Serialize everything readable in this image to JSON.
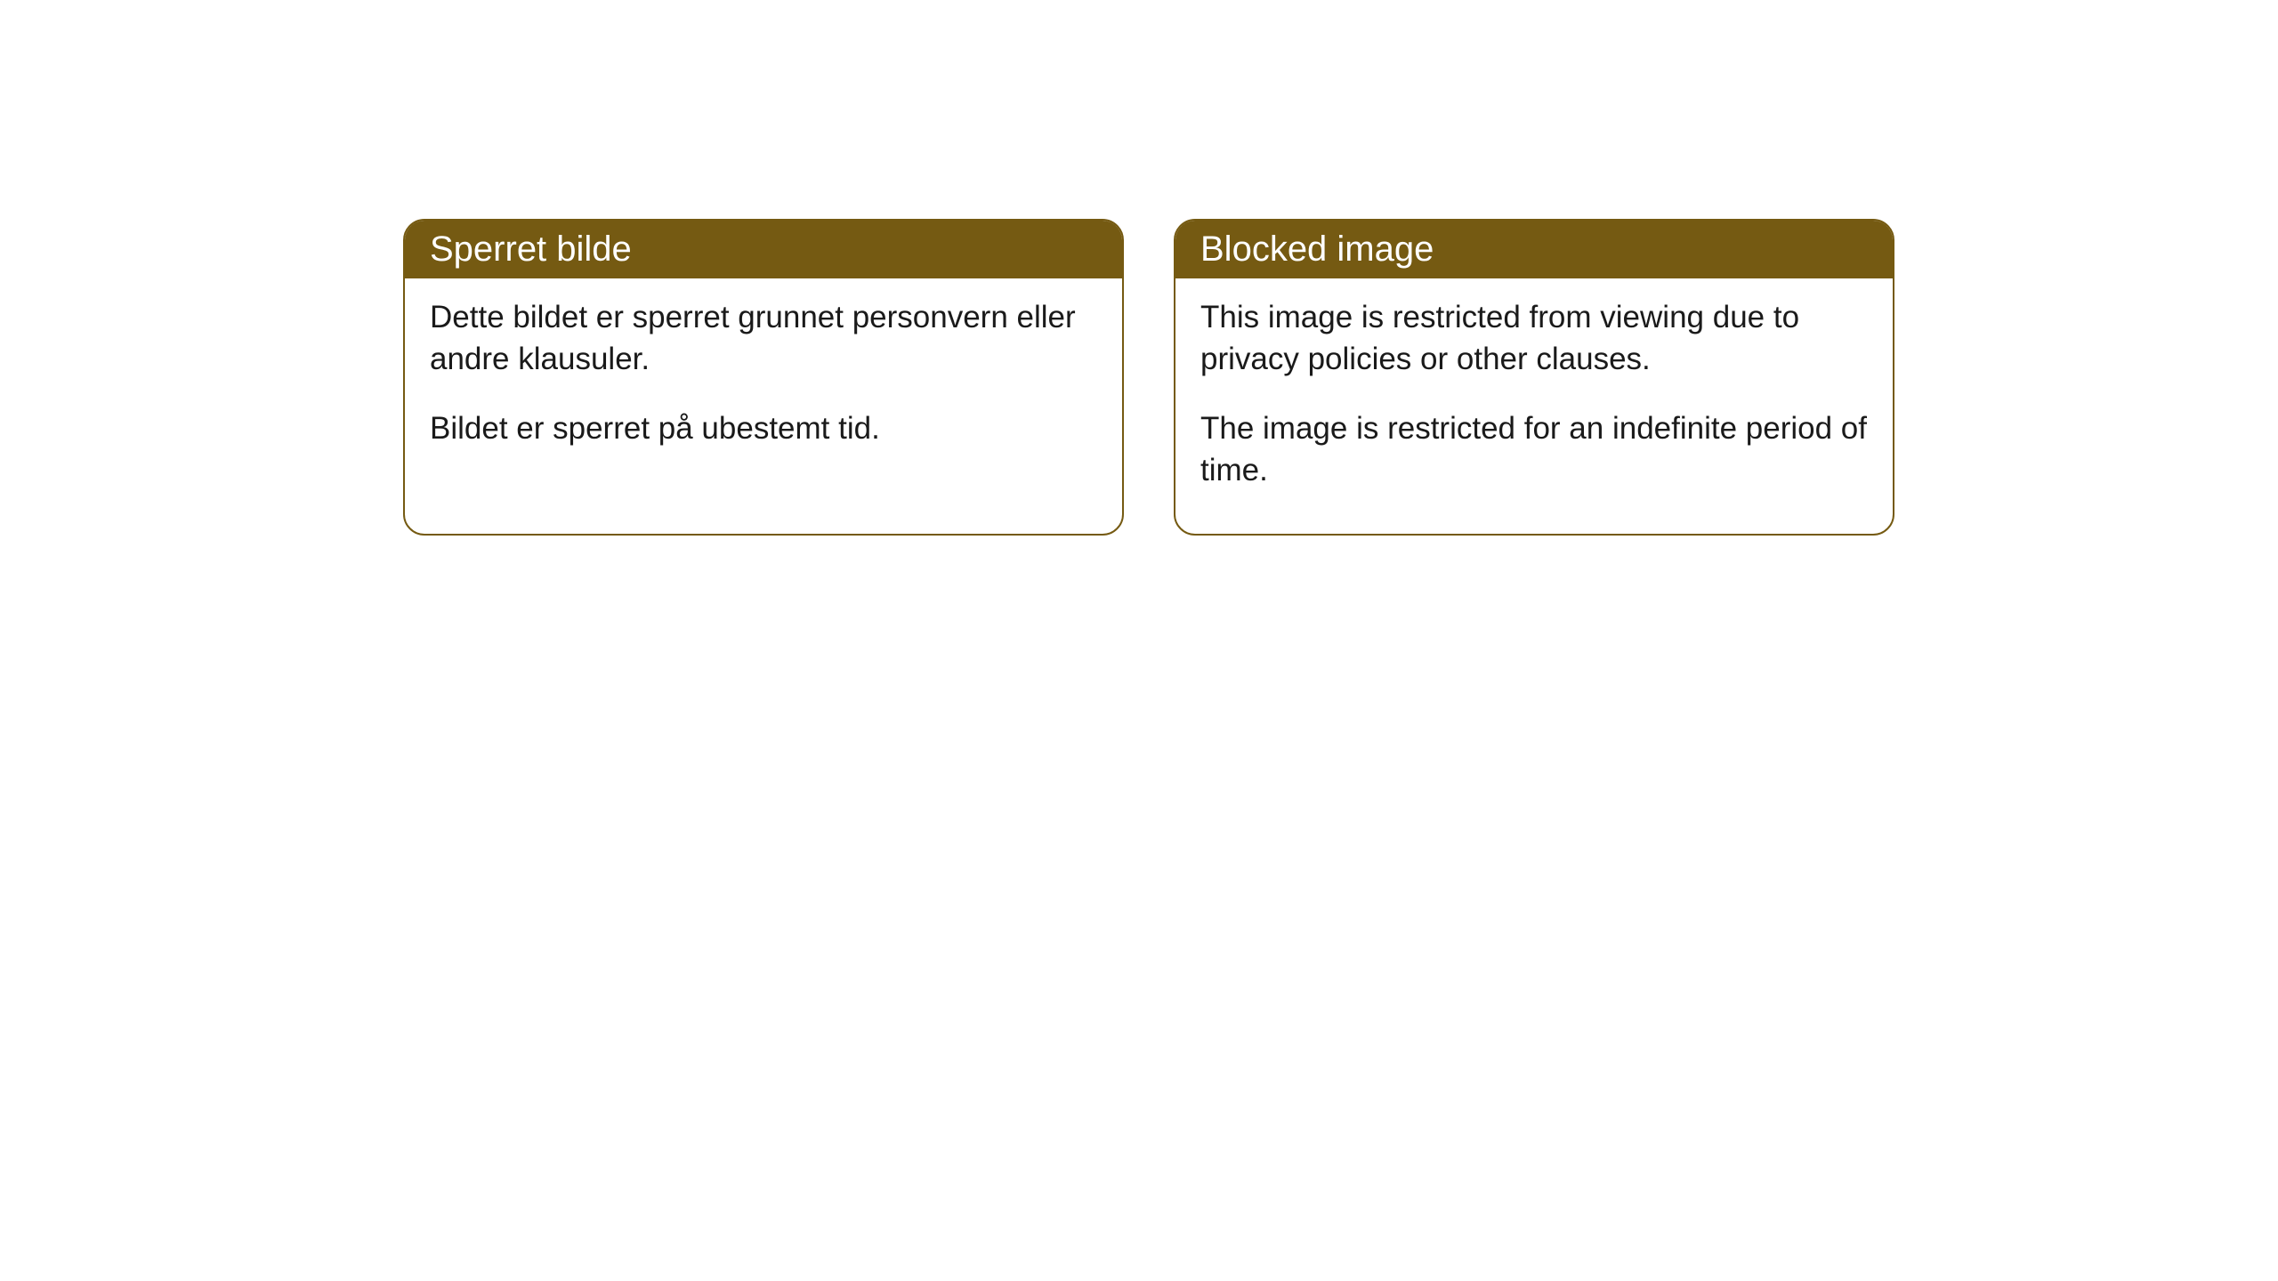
{
  "cards": [
    {
      "title": "Sperret bilde",
      "paragraph1": "Dette bildet er sperret grunnet personvern eller andre klausuler.",
      "paragraph2": "Bildet er sperret på ubestemt tid."
    },
    {
      "title": "Blocked image",
      "paragraph1": "This image is restricted from viewing due to privacy policies or other clauses.",
      "paragraph2": "The image is restricted for an indefinite period of time."
    }
  ],
  "style": {
    "header_bg": "#755a12",
    "header_color": "#ffffff",
    "border_color": "#755a12",
    "body_bg": "#ffffff",
    "body_color": "#1a1a1a",
    "border_radius": 24,
    "title_fontsize": 40,
    "body_fontsize": 35
  }
}
